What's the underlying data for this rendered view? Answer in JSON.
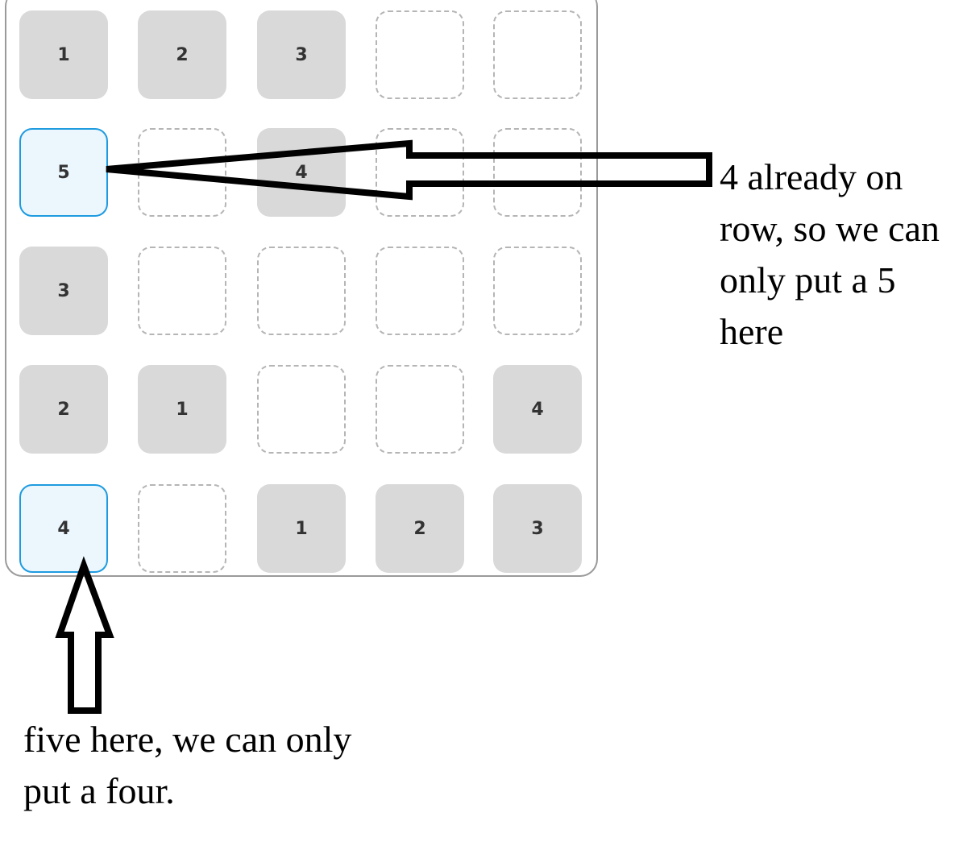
{
  "board": {
    "rows": [
      [
        {
          "value": "1",
          "state": "filled"
        },
        {
          "value": "2",
          "state": "filled"
        },
        {
          "value": "3",
          "state": "filled"
        },
        {
          "value": "",
          "state": "empty"
        },
        {
          "value": "",
          "state": "empty"
        }
      ],
      [
        {
          "value": "5",
          "state": "selected"
        },
        {
          "value": "",
          "state": "empty"
        },
        {
          "value": "4",
          "state": "filled"
        },
        {
          "value": "",
          "state": "empty"
        },
        {
          "value": "",
          "state": "empty"
        }
      ],
      [
        {
          "value": "3",
          "state": "filled"
        },
        {
          "value": "",
          "state": "empty"
        },
        {
          "value": "",
          "state": "empty"
        },
        {
          "value": "",
          "state": "empty"
        },
        {
          "value": "",
          "state": "empty"
        }
      ],
      [
        {
          "value": "2",
          "state": "filled"
        },
        {
          "value": "1",
          "state": "filled"
        },
        {
          "value": "",
          "state": "empty"
        },
        {
          "value": "",
          "state": "empty"
        },
        {
          "value": "4",
          "state": "filled"
        }
      ],
      [
        {
          "value": "4",
          "state": "selected"
        },
        {
          "value": "",
          "state": "empty"
        },
        {
          "value": "1",
          "state": "filled"
        },
        {
          "value": "2",
          "state": "filled"
        },
        {
          "value": "3",
          "state": "filled"
        }
      ]
    ]
  },
  "annotations": {
    "right_note": "4 already on\nrow, so we can\nonly put a 5\nhere",
    "bottom_note": "five here, we can only\nput a four."
  },
  "colors": {
    "filled": "#d9d9d9",
    "empty_border": "#b5b5b5",
    "selected_border": "#1e9be0",
    "selected_fill": "#ebf6fd"
  }
}
